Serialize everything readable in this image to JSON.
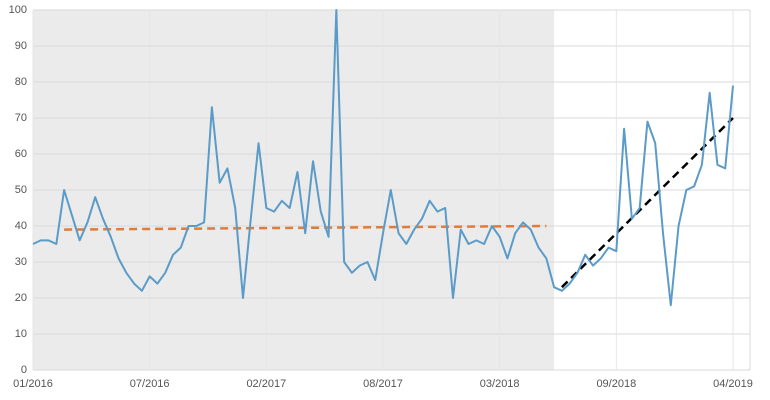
{
  "chart_data": {
    "type": "line",
    "categories": [
      "01/2016",
      null,
      null,
      null,
      null,
      null,
      null,
      null,
      null,
      null,
      null,
      null,
      null,
      null,
      null,
      "07/2016",
      null,
      null,
      null,
      null,
      null,
      null,
      null,
      null,
      null,
      null,
      null,
      null,
      null,
      null,
      "02/2017",
      null,
      null,
      null,
      null,
      null,
      null,
      null,
      null,
      null,
      null,
      null,
      null,
      null,
      null,
      "08/2017",
      null,
      null,
      null,
      null,
      null,
      null,
      null,
      null,
      null,
      null,
      null,
      null,
      null,
      null,
      "03/2018",
      null,
      null,
      null,
      null,
      null,
      null,
      null,
      null,
      null,
      null,
      null,
      null,
      null,
      null,
      "09/2018",
      null,
      null,
      null,
      null,
      null,
      null,
      null,
      null,
      null,
      null,
      null,
      null,
      null,
      null,
      "04/2019"
    ],
    "values": [
      35,
      36,
      36,
      35,
      50,
      43,
      36,
      41,
      48,
      42,
      37,
      31,
      27,
      24,
      22,
      26,
      24,
      27,
      32,
      34,
      40,
      40,
      41,
      73,
      52,
      56,
      45,
      20,
      42,
      63,
      45,
      44,
      47,
      45,
      55,
      38,
      58,
      44,
      37,
      100,
      30,
      27,
      29,
      30,
      25,
      38,
      50,
      38,
      35,
      39,
      42,
      47,
      44,
      45,
      20,
      39,
      35,
      36,
      35,
      40,
      37,
      31,
      38,
      41,
      39,
      34,
      31,
      23,
      22,
      24,
      27,
      32,
      29,
      31,
      34,
      33,
      67,
      42,
      45,
      69,
      63,
      38,
      18,
      40,
      50,
      51,
      57,
      77,
      57,
      56,
      79
    ],
    "color": "#5b9bc8",
    "ylim": [
      0,
      100
    ],
    "yticks": [
      0,
      10,
      20,
      30,
      40,
      50,
      60,
      70,
      80,
      90,
      100
    ],
    "grid": true,
    "shaded_region": [
      0,
      67
    ],
    "shade_color": "#ebebeb",
    "trendlines": [
      {
        "color": "#e07b39",
        "start_index": 4,
        "start_value": 39,
        "end_index": 66,
        "end_value": 40
      },
      {
        "color": "#000000",
        "start_index": 68,
        "start_value": 23,
        "end_index": 90,
        "end_value": 70
      }
    ]
  }
}
